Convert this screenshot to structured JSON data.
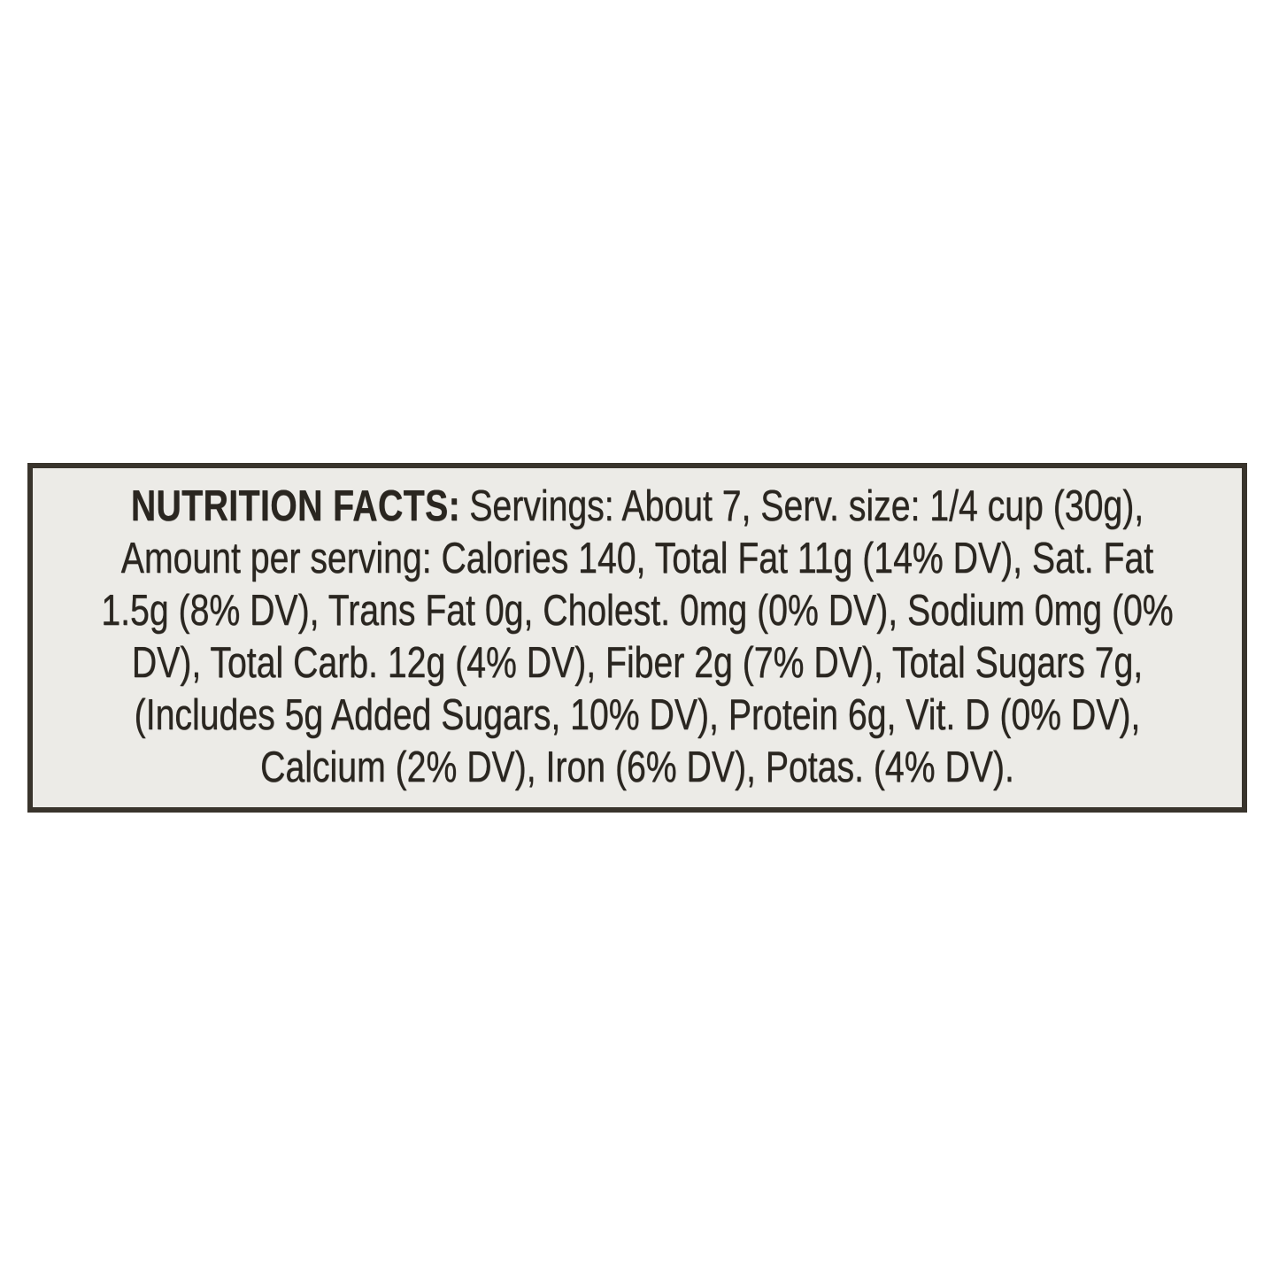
{
  "nutrition_label": {
    "title": "NUTRITION FACTS:",
    "lines": [
      "Servings: About 7, Serv. size: 1/4 cup (30g),",
      "Amount per serving: Calories 140, Total Fat 11g (14% DV), Sat. Fat",
      "1.5g (8% DV), Trans Fat 0g, Cholest. 0mg (0% DV), Sodium 0mg (0%",
      "DV), Total Carb. 12g (4% DV), Fiber 2g (7% DV), Total Sugars 7g,",
      "(Includes 5g Added Sugars, 10% DV), Protein 6g, Vit. D (0% DV),",
      "Calcium (2% DV), Iron (6% DV), Potas. (4% DV)."
    ],
    "colors": {
      "page_bg": "#ffffff",
      "panel_bg": "#ecebe7",
      "border": "#39342c",
      "text": "#2a2620"
    }
  }
}
